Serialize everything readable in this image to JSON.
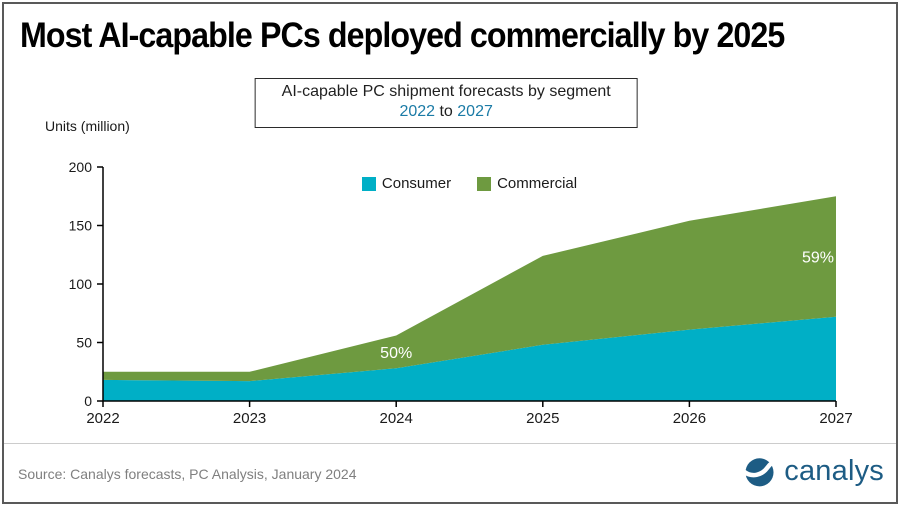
{
  "header": {
    "title": "Most AI-capable PCs deployed commercially by 2025"
  },
  "subtitle": {
    "line1": "AI-capable PC shipment forecasts by segment",
    "year_start": "2022",
    "connector": "to",
    "year_end": "2027",
    "accent_color": "#1B7BA6"
  },
  "chart_data": {
    "type": "area",
    "stacked": true,
    "ylabel": "Units (million)",
    "x": [
      2022,
      2023,
      2024,
      2025,
      2026,
      2027
    ],
    "series": [
      {
        "name": "Consumer",
        "color": "#00AFC6",
        "values": [
          18,
          17,
          28,
          48,
          61,
          72
        ]
      },
      {
        "name": "Commercial",
        "color": "#6E9A40",
        "values": [
          7,
          8,
          28,
          76,
          93,
          103
        ]
      }
    ],
    "ylim": [
      0,
      200
    ],
    "yticks": [
      0,
      50,
      100,
      150,
      200
    ],
    "annotations": [
      {
        "label": "50%",
        "year": 2024,
        "series": "Commercial",
        "color": "#FFFFFF"
      },
      {
        "label": "59%",
        "year": 2027,
        "series": "Commercial",
        "color": "#FFFFFF"
      }
    ],
    "legend_position": "top-center",
    "grid": false,
    "axis_color": "#000000"
  },
  "footer": {
    "source": "Source:  Canalys forecasts, PC Analysis, January 2024",
    "brand": "canalys",
    "brand_color": "#1D5C84"
  }
}
